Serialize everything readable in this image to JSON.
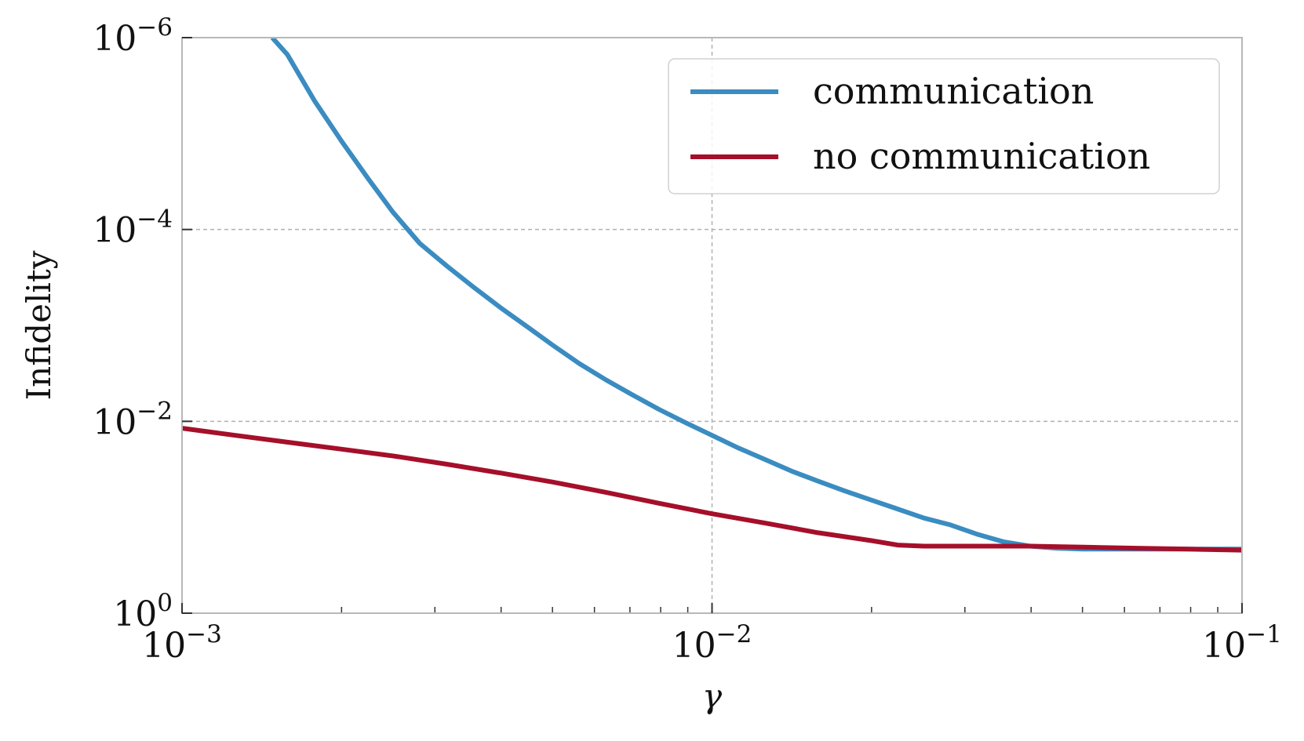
{
  "chart_data": {
    "type": "line",
    "xlabel": "γ",
    "ylabel": "Infidelity",
    "x_scale": "log",
    "y_scale": "log",
    "y_inverted": true,
    "xlim": [
      0.001,
      0.1
    ],
    "ylim": [
      1,
      1e-06
    ],
    "grid": true,
    "legend_position": "top-right",
    "x_ticks": [
      {
        "value": 0.001,
        "base": "10",
        "exp": "−3"
      },
      {
        "value": 0.01,
        "base": "10",
        "exp": "−2"
      },
      {
        "value": 0.1,
        "base": "10",
        "exp": "−1"
      }
    ],
    "y_ticks": [
      {
        "value": 1e-06,
        "base": "10",
        "exp": "−6"
      },
      {
        "value": 0.0001,
        "base": "10",
        "exp": "−4"
      },
      {
        "value": 0.01,
        "base": "10",
        "exp": "−2"
      },
      {
        "value": 1,
        "base": "10",
        "exp": "0"
      }
    ],
    "series": [
      {
        "name": "communication",
        "color": "#3a8cc1",
        "x": [
          0.00148,
          0.00158,
          0.00178,
          0.002,
          0.00225,
          0.0025,
          0.00281,
          0.00316,
          0.00355,
          0.004,
          0.0045,
          0.005,
          0.00562,
          0.00631,
          0.00708,
          0.00794,
          0.00891,
          0.01,
          0.01122,
          0.01259,
          0.01413,
          0.01585,
          0.01778,
          0.01995,
          0.02239,
          0.02512,
          0.02818,
          0.03162,
          0.03548,
          0.03981,
          0.04467,
          0.05012,
          0.06,
          0.08,
          0.1
        ],
        "y": [
          1e-06,
          1.5e-06,
          4.6e-06,
          1.2e-05,
          3e-05,
          6.6e-05,
          0.00014,
          0.00024,
          0.0004,
          0.00066,
          0.00105,
          0.0016,
          0.0025,
          0.0037,
          0.0053,
          0.0075,
          0.0103,
          0.014,
          0.019,
          0.025,
          0.033,
          0.042,
          0.053,
          0.066,
          0.082,
          0.102,
          0.12,
          0.15,
          0.18,
          0.2,
          0.21,
          0.215,
          0.215,
          0.215,
          0.215
        ]
      },
      {
        "name": "no communication",
        "color": "#a50f2a",
        "x": [
          0.001,
          0.00126,
          0.00158,
          0.002,
          0.00251,
          0.00316,
          0.00398,
          0.00501,
          0.00631,
          0.00794,
          0.01,
          0.01259,
          0.01585,
          0.01995,
          0.02239,
          0.02512,
          0.03162,
          0.03981,
          0.05012,
          0.0631,
          0.07943,
          0.1
        ],
        "y": [
          0.0118,
          0.014,
          0.0165,
          0.0195,
          0.023,
          0.028,
          0.0345,
          0.043,
          0.055,
          0.0715,
          0.092,
          0.115,
          0.145,
          0.175,
          0.195,
          0.2,
          0.2,
          0.2,
          0.205,
          0.21,
          0.215,
          0.22
        ]
      }
    ]
  }
}
